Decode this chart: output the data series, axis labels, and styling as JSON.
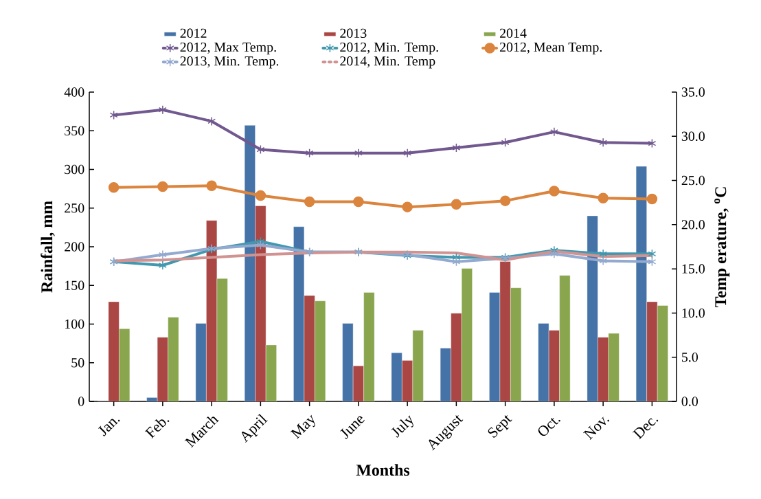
{
  "chart_data": {
    "type": "bar",
    "categories": [
      "Jan.",
      "Feb.",
      "March",
      "April",
      "May",
      "June",
      "July",
      "August",
      "Sept",
      "Oct.",
      "Nov.",
      "Dec."
    ],
    "xlabel": "Months",
    "ylabel": "Rainfall, mm",
    "y2label": "Temp erature, $^{o}$C",
    "ylim": [
      0,
      400
    ],
    "yticks": [
      0,
      50,
      100,
      150,
      200,
      250,
      300,
      350,
      400
    ],
    "y2lim": [
      0,
      35
    ],
    "y2ticks": [
      {
        "value": 0,
        "label": "0.0"
      },
      {
        "value": 5,
        "label": "5.0"
      },
      {
        "value": 10,
        "label": "10.0"
      },
      {
        "value": 15,
        "label": "15.0"
      },
      {
        "value": 20,
        "label": "20.0"
      },
      {
        "value": 25,
        "label": "25.0"
      },
      {
        "value": 30,
        "label": "30.0"
      },
      {
        "value": 35,
        "label": "35.0"
      }
    ],
    "legend": "top",
    "series": [
      {
        "name": "2012",
        "color": "#4572a7",
        "values": [
          0,
          5,
          101,
          357,
          226,
          101,
          63,
          69,
          141,
          101,
          240,
          304
        ]
      },
      {
        "name": "2013",
        "color": "#aa4643",
        "values": [
          129,
          83,
          234,
          253,
          137,
          46,
          53,
          114,
          181,
          92,
          83,
          129
        ]
      },
      {
        "name": "2014",
        "color": "#89a54e",
        "values": [
          94,
          109,
          159,
          73,
          130,
          141,
          92,
          172,
          147,
          163,
          88,
          124
        ]
      },
      {
        "name": "2012, Max Temp.",
        "type": "line",
        "axis": "y2",
        "marker": "cross",
        "color": "#71588f",
        "values": [
          32.4,
          33.0,
          31.7,
          28.5,
          28.1,
          28.1,
          28.1,
          28.7,
          29.3,
          30.5,
          29.3,
          29.2
        ]
      },
      {
        "name": "2012, Min. Temp.",
        "type": "line",
        "axis": "y2",
        "marker": "cross",
        "color": "#4198af",
        "values": [
          15.8,
          15.4,
          17.2,
          18.1,
          16.9,
          16.9,
          16.5,
          16.3,
          16.3,
          17.1,
          16.7,
          16.7
        ]
      },
      {
        "name": "2012, Mean Temp.",
        "type": "line",
        "axis": "y2",
        "marker": "circle",
        "color": "#db843d",
        "values": [
          24.2,
          24.3,
          24.4,
          23.3,
          22.6,
          22.6,
          22.0,
          22.3,
          22.7,
          23.8,
          23.0,
          22.9
        ]
      },
      {
        "name": "2013, Min. Temp.",
        "type": "line",
        "axis": "y2",
        "marker": "cross",
        "color": "#93a9cf",
        "values": [
          15.8,
          16.6,
          17.3,
          17.7,
          16.9,
          16.9,
          16.6,
          15.8,
          16.2,
          16.7,
          15.9,
          15.8
        ]
      },
      {
        "name": "2014, Min. Temp",
        "type": "line",
        "axis": "y2",
        "marker": "none",
        "color": "#d19392",
        "values": [
          15.9,
          16.0,
          16.3,
          16.6,
          16.8,
          16.9,
          16.9,
          16.8,
          16.0,
          17.0,
          16.4,
          16.5
        ]
      }
    ]
  }
}
